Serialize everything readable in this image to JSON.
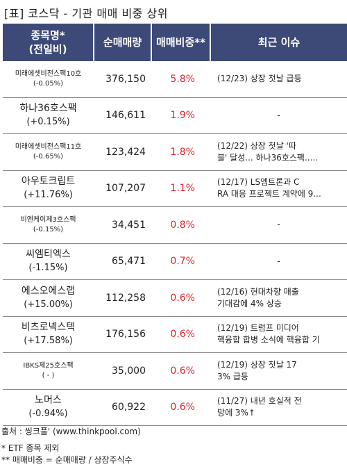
{
  "title": "[표] 코스닥 - 기관 매매 비중 상위",
  "headers": {
    "name_line1": "종목명*",
    "name_line2": "(전일비)",
    "volume": "순매매량",
    "ratio": "매매비중**",
    "issue": "최근 이슈"
  },
  "rows": [
    {
      "name": "미래에셋비전스팩10호",
      "change": "(-0.05%)",
      "volume": "376,150",
      "ratio": "5.8%",
      "issue": "(12/23) 상장 첫날 급등"
    },
    {
      "name": "하나36호스팩",
      "change": "(+0.15%)",
      "volume": "146,611",
      "ratio": "1.9%",
      "issue": "-"
    },
    {
      "name": "미래에셋비전스팩11호",
      "change": "(-0.65%)",
      "volume": "123,424",
      "ratio": "1.8%",
      "issue": "(12/22) 상장 첫날 '따\n블' 달성... 하나36호스팩....."
    },
    {
      "name": "아우토크립트",
      "change": "(+11.76%)",
      "volume": "107,207",
      "ratio": "1.1%",
      "issue": "(12/17) LS엠트론과 C\nRA 대응 프로젝트 계약에 9..."
    },
    {
      "name": "비엔케이제3호스팩",
      "change": "(-0.15%)",
      "volume": "34,451",
      "ratio": "0.8%",
      "issue": "-"
    },
    {
      "name": "씨엠티엑스",
      "change": "(-1.15%)",
      "volume": "65,471",
      "ratio": "0.7%",
      "issue": "-"
    },
    {
      "name": "에스오에스랩",
      "change": "(+15.00%)",
      "volume": "112,258",
      "ratio": "0.6%",
      "issue": "(12/16) 현대차향 매출\n기대감에 4% 상승"
    },
    {
      "name": "비츠로넥스텍",
      "change": "(+17.58%)",
      "volume": "176,156",
      "ratio": "0.6%",
      "issue": "(12/19) 트럼프 미디어\n핵융합 합병 소식에 핵융합 기"
    },
    {
      "name": "IBKS제25호스팩",
      "change": "( - )",
      "volume": "35,000",
      "ratio": "0.6%",
      "issue": "(12/19) 상장 첫날 17\n3% 급등"
    },
    {
      "name": "노머스",
      "change": "(-0.94%)",
      "volume": "60,922",
      "ratio": "0.6%",
      "issue": "(11/27) 내년 호실적 전\n망에 3%↑"
    }
  ],
  "source": "출처 : 씽크풀' (www.thinkpool.com)",
  "notes": [
    "* ETF 종목 제외",
    "** 매매비중 = 순매매량 / 상장주식수"
  ]
}
